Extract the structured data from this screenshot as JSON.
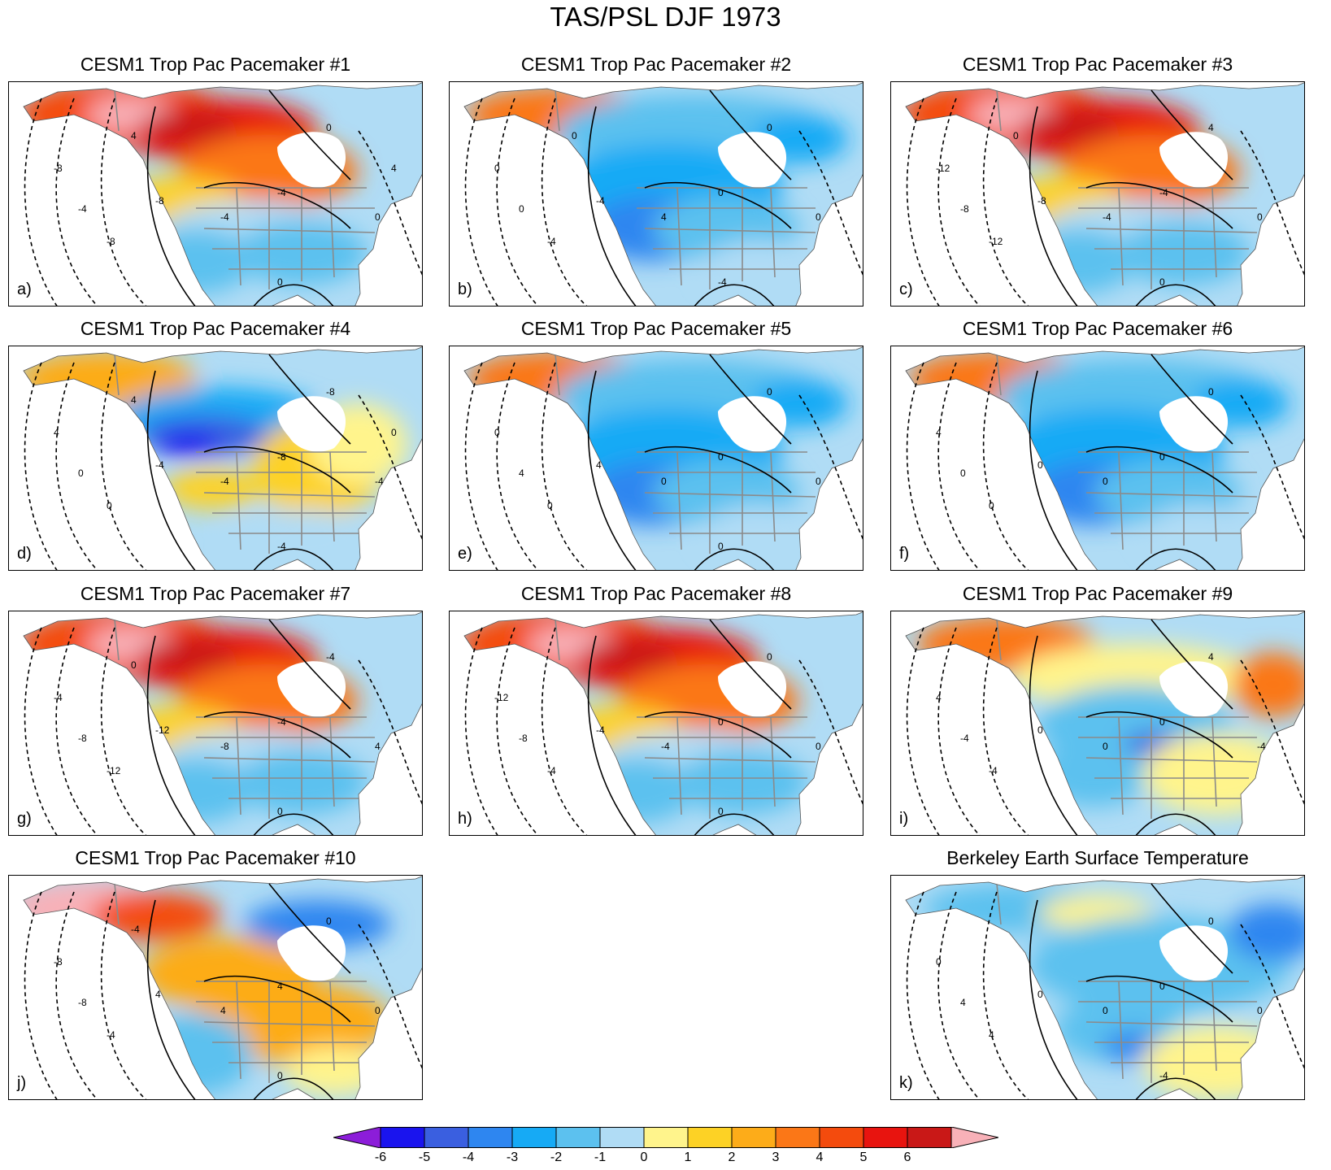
{
  "title": "TAS/PSL DJF 1973",
  "panels": [
    {
      "title": "CESM1 Trop Pac Pacemaker #1",
      "letter": "a)",
      "anomaly": "warm-north",
      "labels": [
        "-8",
        "-4",
        "-8",
        "-8",
        "-4",
        "-4",
        "0",
        "0",
        "0",
        "4",
        "4"
      ]
    },
    {
      "title": "CESM1 Trop Pac Pacemaker #2",
      "letter": "b)",
      "anomaly": "cold",
      "labels": [
        "0",
        "0",
        "-4",
        "-4",
        "4",
        "0",
        "0",
        "0",
        "-4",
        "0"
      ]
    },
    {
      "title": "CESM1 Trop Pac Pacemaker #3",
      "letter": "c)",
      "anomaly": "warm-north",
      "labels": [
        "-12",
        "-8",
        "-12",
        "-8",
        "-4",
        "-4",
        "4",
        "0",
        "0",
        "0"
      ]
    },
    {
      "title": "CESM1 Trop Pac Pacemaker #4",
      "letter": "d)",
      "anomaly": "cold-core",
      "labels": [
        "4",
        "0",
        "0",
        "-4",
        "-4",
        "-8",
        "-8",
        "-4",
        "-4",
        "4",
        "0"
      ]
    },
    {
      "title": "CESM1 Trop Pac Pacemaker #5",
      "letter": "e)",
      "anomaly": "cold",
      "labels": [
        "0",
        "4",
        "0",
        "4",
        "0",
        "0",
        "0",
        "0",
        "0"
      ]
    },
    {
      "title": "CESM1 Trop Pac Pacemaker #6",
      "letter": "f)",
      "anomaly": "cold",
      "labels": [
        "4",
        "0",
        "0",
        "0",
        "0",
        "0",
        "0"
      ]
    },
    {
      "title": "CESM1 Trop Pac Pacemaker #7",
      "letter": "g)",
      "anomaly": "warm-north",
      "labels": [
        "-4",
        "-8",
        "-12",
        "-12",
        "-8",
        "-4",
        "-4",
        "4",
        "0",
        "0"
      ]
    },
    {
      "title": "CESM1 Trop Pac Pacemaker #8",
      "letter": "h)",
      "anomaly": "warm-north",
      "labels": [
        "-12",
        "-8",
        "-4",
        "-4",
        "-4",
        "0",
        "0",
        "0",
        "0"
      ]
    },
    {
      "title": "CESM1 Trop Pac Pacemaker #9",
      "letter": "i)",
      "anomaly": "mixed",
      "labels": [
        "4",
        "-4",
        "-4",
        "0",
        "0",
        "0",
        "4",
        "-4"
      ]
    },
    {
      "title": "CESM1 Trop Pac Pacemaker #10",
      "letter": "j)",
      "anomaly": "warm-west",
      "labels": [
        "-8",
        "-8",
        "-4",
        "4",
        "4",
        "4",
        "0",
        "0",
        "0",
        "-4"
      ]
    },
    {
      "title": "Berkeley Earth Surface Temperature",
      "letter": "k)",
      "anomaly": "cold-east",
      "labels": [
        "0",
        "4",
        "4",
        "0",
        "0",
        "0",
        "0",
        "0",
        "-4"
      ]
    }
  ],
  "colorbar": {
    "colors": [
      "#8c1dd9",
      "#1a14ee",
      "#3a5fe0",
      "#2e86f0",
      "#16aaf5",
      "#5cc1ef",
      "#b0dcf5",
      "#fff48c",
      "#fdd225",
      "#fdac19",
      "#fb7717",
      "#f44b0d",
      "#e8140f",
      "#c91817",
      "#f8b1b8"
    ],
    "labels": [
      "-6",
      "-5",
      "-4",
      "-3",
      "-2",
      "-1",
      "0",
      "1",
      "2",
      "3",
      "4",
      "5",
      "6"
    ]
  }
}
